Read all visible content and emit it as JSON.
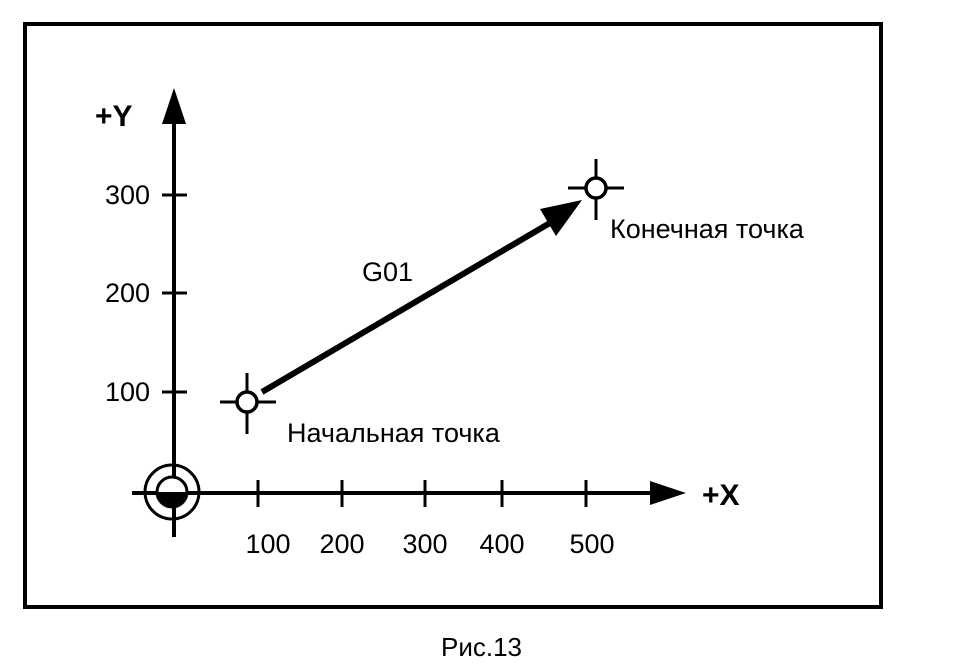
{
  "figure": {
    "caption": "Рис.13",
    "move_label": "G01",
    "x_axis": {
      "label": "+X",
      "ticks": [
        "100",
        "200",
        "300",
        "400",
        "500"
      ]
    },
    "y_axis": {
      "label": "+Y",
      "ticks": [
        "100",
        "200",
        "300"
      ]
    },
    "start_point": {
      "label": "Начальная точка"
    },
    "end_point": {
      "label": "Конечная точка"
    },
    "stroke_color": "#000000"
  },
  "chart_data": {
    "type": "line",
    "title": "",
    "xlabel": "+X",
    "ylabel": "+Y",
    "series": [
      {
        "name": "G01",
        "x": [
          90,
          510
        ],
        "y": [
          90,
          305
        ]
      }
    ],
    "xlim": [
      0,
      600
    ],
    "ylim": [
      0,
      350
    ],
    "xticks": [
      100,
      200,
      300,
      400,
      500
    ],
    "yticks": [
      100,
      200,
      300
    ],
    "grid": false
  }
}
